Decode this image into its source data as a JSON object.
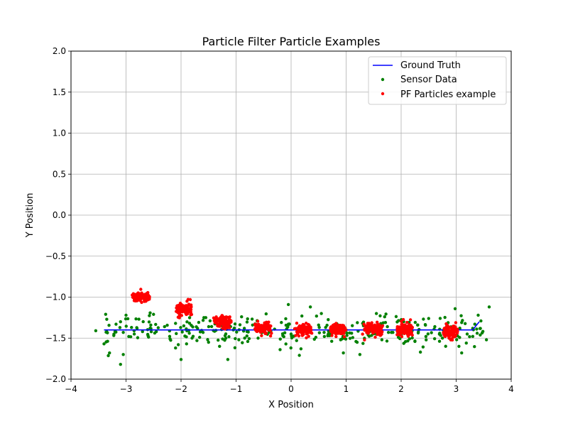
{
  "chart_data": {
    "type": "scatter",
    "title": "Particle Filter Particle Examples",
    "xlabel": "X Position",
    "ylabel": "Y Position",
    "xlim": [
      -4,
      4
    ],
    "ylim": [
      -2,
      2
    ],
    "xticks": [
      -4,
      -3,
      -2,
      -1,
      0,
      1,
      2,
      3,
      4
    ],
    "yticks": [
      -2.0,
      -1.5,
      -1.0,
      -0.5,
      0.0,
      0.5,
      1.0,
      1.5,
      2.0
    ],
    "xtick_labels": [
      "−4",
      "−3",
      "−2",
      "−1",
      "0",
      "1",
      "2",
      "3",
      "4"
    ],
    "ytick_labels": [
      "−2.0",
      "−1.5",
      "−1.0",
      "−0.5",
      "0.0",
      "0.5",
      "1.0",
      "1.5",
      "2.0"
    ],
    "grid": true,
    "legend_position": "top-right",
    "legend": [
      {
        "label": "Ground Truth",
        "kind": "line",
        "color": "#0000ff"
      },
      {
        "label": "Sensor Data",
        "kind": "marker",
        "color": "#008000"
      },
      {
        "label": "PF Particles example",
        "kind": "marker",
        "color": "#ff0000"
      }
    ],
    "series": [
      {
        "name": "Ground Truth",
        "kind": "line",
        "color": "#0000ff",
        "x": [
          -3.4,
          3.3,
          3.42
        ],
        "y": [
          -1.4,
          -1.4,
          -1.3
        ]
      },
      {
        "name": "Sensor Data",
        "kind": "scatter",
        "color": "#008000",
        "x": [
          -3.55,
          -3.4,
          -3.35,
          -3.2,
          -3.1,
          -3.05,
          -3.0,
          -2.95,
          -2.9,
          -2.85,
          -2.8,
          -2.7,
          -2.6,
          -2.55,
          -2.45,
          -2.3,
          -2.2,
          -2.1,
          -2.05,
          -1.95,
          -1.85,
          -1.8,
          -1.7,
          -1.6,
          -1.5,
          -1.4,
          -1.35,
          -1.2,
          -1.1,
          -1.05,
          -0.95,
          -0.85,
          -0.8,
          -0.7,
          -0.6,
          -0.5,
          -0.4,
          -0.3,
          -0.15,
          -0.05,
          0.0,
          0.1,
          0.2,
          0.3,
          0.45,
          0.5,
          0.6,
          0.7,
          0.8,
          0.9,
          1.0,
          1.1,
          1.2,
          1.3,
          1.4,
          1.55,
          1.65,
          1.75,
          1.85,
          1.95,
          2.1,
          2.2,
          2.3,
          2.45,
          2.6,
          2.7,
          2.75,
          2.85,
          3.0,
          3.1,
          3.2,
          3.3,
          3.45,
          3.55,
          -3.3,
          -3.05,
          -2.5,
          -2.1,
          -1.55,
          -1.3,
          -0.9,
          -0.2,
          0.15,
          0.55,
          1.25,
          1.7,
          2.35,
          3.05,
          -3.1,
          -1.9,
          -1.15,
          0.35,
          0.95,
          2.5,
          3.4,
          -2.0,
          -0.05,
          1.55,
          3.1,
          3.6
        ],
        "y": [
          -1.41,
          -1.57,
          -1.27,
          -1.42,
          -1.82,
          -1.43,
          -1.22,
          -1.48,
          -1.37,
          -1.45,
          -1.38,
          -1.42,
          -1.47,
          -1.34,
          -1.42,
          -1.36,
          -1.51,
          -1.32,
          -1.58,
          -1.35,
          -1.44,
          -1.5,
          -1.38,
          -1.43,
          -1.55,
          -1.41,
          -1.26,
          -1.47,
          -1.36,
          -1.4,
          -1.52,
          -1.38,
          -1.42,
          -1.34,
          -1.5,
          -1.37,
          -1.43,
          -1.39,
          -1.47,
          -1.33,
          -1.45,
          -1.53,
          -1.37,
          -1.41,
          -1.49,
          -1.34,
          -1.43,
          -1.47,
          -1.36,
          -1.52,
          -1.4,
          -1.44,
          -1.55,
          -1.32,
          -1.46,
          -1.38,
          -1.52,
          -1.36,
          -1.43,
          -1.49,
          -1.37,
          -1.41,
          -1.34,
          -1.48,
          -1.39,
          -1.44,
          -1.5,
          -1.36,
          -1.42,
          -1.31,
          -1.45,
          -1.38,
          -1.29,
          -1.52,
          -1.68,
          -1.7,
          -1.21,
          -1.62,
          -1.25,
          -1.6,
          -1.24,
          -1.64,
          -1.71,
          -1.2,
          -1.7,
          -1.24,
          -1.67,
          -1.6,
          -1.3,
          -1.57,
          -1.76,
          -1.12,
          -1.68,
          -1.26,
          -1.22,
          -1.76,
          -1.09,
          -1.2,
          -1.68,
          -1.12
        ],
        "size": 2.2
      },
      {
        "name": "PF Particles example",
        "kind": "scatter",
        "color": "#ff0000",
        "clusters": [
          {
            "cx": -2.72,
            "cy": -1.0,
            "sx": 0.16,
            "sy": 0.025,
            "n": 110
          },
          {
            "cx": -1.95,
            "cy": -1.15,
            "sx": 0.15,
            "sy": 0.04,
            "n": 110
          },
          {
            "cx": -1.25,
            "cy": -1.3,
            "sx": 0.15,
            "sy": 0.04,
            "n": 110
          },
          {
            "cx": -0.52,
            "cy": -1.37,
            "sx": 0.16,
            "sy": 0.035,
            "n": 110
          },
          {
            "cx": 0.22,
            "cy": -1.4,
            "sx": 0.15,
            "sy": 0.035,
            "n": 110
          },
          {
            "cx": 0.85,
            "cy": -1.4,
            "sx": 0.15,
            "sy": 0.035,
            "n": 110
          },
          {
            "cx": 1.5,
            "cy": -1.39,
            "sx": 0.18,
            "sy": 0.035,
            "n": 110
          },
          {
            "cx": 2.06,
            "cy": -1.39,
            "sx": 0.15,
            "sy": 0.035,
            "n": 110
          },
          {
            "cx": 2.9,
            "cy": -1.43,
            "sx": 0.14,
            "sy": 0.04,
            "n": 110
          }
        ],
        "size": 2.2
      }
    ]
  }
}
